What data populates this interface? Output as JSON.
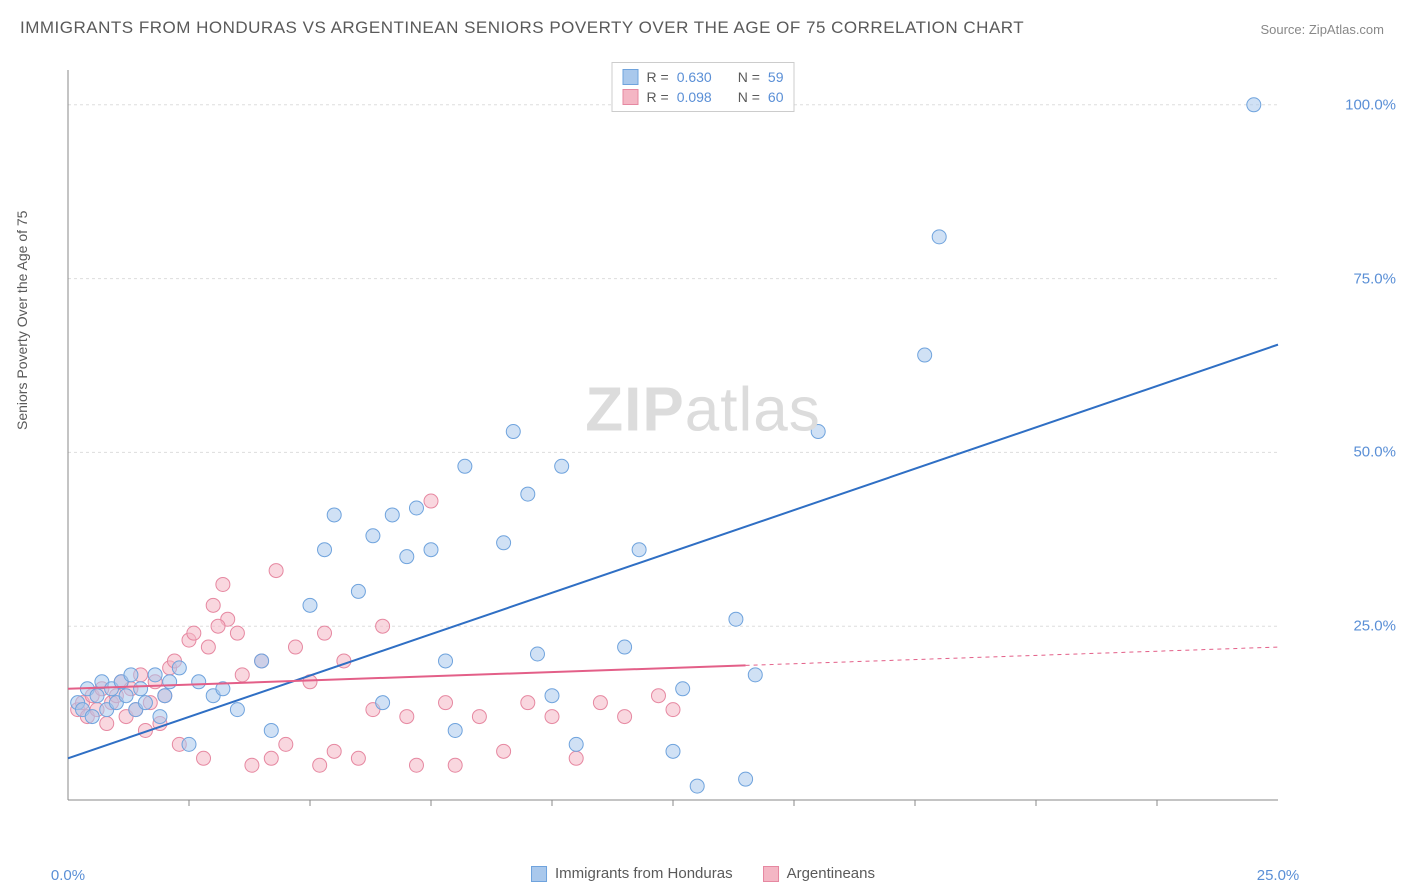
{
  "title": "IMMIGRANTS FROM HONDURAS VS ARGENTINEAN SENIORS POVERTY OVER THE AGE OF 75 CORRELATION CHART",
  "source_label": "Source: ",
  "source_value": "ZipAtlas.com",
  "y_axis_label": "Seniors Poverty Over the Age of 75",
  "watermark_zip": "ZIP",
  "watermark_atlas": "atlas",
  "chart": {
    "type": "scatter",
    "xlim": [
      0,
      25
    ],
    "ylim": [
      0,
      105
    ],
    "x_ticks": [
      0,
      25
    ],
    "x_tick_labels": [
      "0.0%",
      "25.0%"
    ],
    "x_minor_ticks": [
      2.5,
      5,
      7.5,
      10,
      12.5,
      15,
      17.5,
      20,
      22.5
    ],
    "y_ticks": [
      25,
      50,
      75,
      100
    ],
    "y_tick_labels": [
      "25.0%",
      "50.0%",
      "75.0%",
      "100.0%"
    ],
    "grid_color": "#dddddd",
    "axis_color": "#888888",
    "background_color": "#ffffff",
    "marker_radius": 7,
    "marker_stroke_width": 1,
    "line_width": 2,
    "series": [
      {
        "name": "Immigrants from Honduras",
        "fill_color": "#a9c8ec",
        "stroke_color": "#6fa3dd",
        "fill_opacity": 0.55,
        "r_label": "R = ",
        "r_value": "0.630",
        "n_label": "N = ",
        "n_value": "59",
        "trend_line": {
          "x1": 0,
          "y1": 6,
          "x2": 25,
          "y2": 65.5
        },
        "trend_solid_until_x": 25,
        "trend_color": "#2f6fc4",
        "points": [
          [
            0.2,
            14
          ],
          [
            0.3,
            13
          ],
          [
            0.4,
            16
          ],
          [
            0.5,
            12
          ],
          [
            0.6,
            15
          ],
          [
            0.7,
            17
          ],
          [
            0.8,
            13
          ],
          [
            0.9,
            16
          ],
          [
            1.0,
            14
          ],
          [
            1.1,
            17
          ],
          [
            1.2,
            15
          ],
          [
            1.3,
            18
          ],
          [
            1.4,
            13
          ],
          [
            1.5,
            16
          ],
          [
            1.6,
            14
          ],
          [
            1.8,
            18
          ],
          [
            1.9,
            12
          ],
          [
            2.0,
            15
          ],
          [
            2.1,
            17
          ],
          [
            2.3,
            19
          ],
          [
            2.5,
            8
          ],
          [
            2.7,
            17
          ],
          [
            3.0,
            15
          ],
          [
            3.2,
            16
          ],
          [
            3.5,
            13
          ],
          [
            4.0,
            20
          ],
          [
            4.2,
            10
          ],
          [
            5.0,
            28
          ],
          [
            5.3,
            36
          ],
          [
            5.5,
            41
          ],
          [
            6.0,
            30
          ],
          [
            6.3,
            38
          ],
          [
            6.7,
            41
          ],
          [
            6.5,
            14
          ],
          [
            7.0,
            35
          ],
          [
            7.2,
            42
          ],
          [
            7.5,
            36
          ],
          [
            7.8,
            20
          ],
          [
            8.0,
            10
          ],
          [
            8.2,
            48
          ],
          [
            9.0,
            37
          ],
          [
            9.5,
            44
          ],
          [
            9.2,
            53
          ],
          [
            9.7,
            21
          ],
          [
            10.0,
            15
          ],
          [
            10.2,
            48
          ],
          [
            10.5,
            8
          ],
          [
            11.5,
            22
          ],
          [
            11.8,
            36
          ],
          [
            12.5,
            7
          ],
          [
            12.7,
            16
          ],
          [
            13.0,
            2
          ],
          [
            13.8,
            26
          ],
          [
            14.0,
            3
          ],
          [
            14.2,
            18
          ],
          [
            15.5,
            53
          ],
          [
            17.7,
            64
          ],
          [
            18.0,
            81
          ],
          [
            24.5,
            100
          ]
        ]
      },
      {
        "name": "Argentineans",
        "fill_color": "#f4b6c4",
        "stroke_color": "#e688a1",
        "fill_opacity": 0.55,
        "r_label": "R = ",
        "r_value": "0.098",
        "n_label": "N = ",
        "n_value": "60",
        "trend_line": {
          "x1": 0,
          "y1": 16,
          "x2": 25,
          "y2": 22
        },
        "trend_solid_until_x": 14,
        "trend_color": "#e35f88",
        "points": [
          [
            0.2,
            13
          ],
          [
            0.3,
            14
          ],
          [
            0.4,
            12
          ],
          [
            0.5,
            15
          ],
          [
            0.6,
            13
          ],
          [
            0.7,
            16
          ],
          [
            0.8,
            11
          ],
          [
            0.9,
            14
          ],
          [
            1.0,
            15
          ],
          [
            1.1,
            17
          ],
          [
            1.2,
            12
          ],
          [
            1.3,
            16
          ],
          [
            1.4,
            13
          ],
          [
            1.5,
            18
          ],
          [
            1.6,
            10
          ],
          [
            1.7,
            14
          ],
          [
            1.8,
            17
          ],
          [
            1.9,
            11
          ],
          [
            2.0,
            15
          ],
          [
            2.1,
            19
          ],
          [
            2.2,
            20
          ],
          [
            2.3,
            8
          ],
          [
            2.5,
            23
          ],
          [
            2.6,
            24
          ],
          [
            2.8,
            6
          ],
          [
            3.0,
            28
          ],
          [
            2.9,
            22
          ],
          [
            3.2,
            31
          ],
          [
            3.3,
            26
          ],
          [
            3.1,
            25
          ],
          [
            3.5,
            24
          ],
          [
            3.6,
            18
          ],
          [
            3.8,
            5
          ],
          [
            4.0,
            20
          ],
          [
            4.2,
            6
          ],
          [
            4.3,
            33
          ],
          [
            4.5,
            8
          ],
          [
            4.7,
            22
          ],
          [
            5.0,
            17
          ],
          [
            5.2,
            5
          ],
          [
            5.3,
            24
          ],
          [
            5.5,
            7
          ],
          [
            5.7,
            20
          ],
          [
            6.0,
            6
          ],
          [
            6.3,
            13
          ],
          [
            6.5,
            25
          ],
          [
            7.0,
            12
          ],
          [
            7.2,
            5
          ],
          [
            7.5,
            43
          ],
          [
            7.8,
            14
          ],
          [
            8.0,
            5
          ],
          [
            8.5,
            12
          ],
          [
            9.0,
            7
          ],
          [
            9.5,
            14
          ],
          [
            10.0,
            12
          ],
          [
            10.5,
            6
          ],
          [
            11.0,
            14
          ],
          [
            11.5,
            12
          ],
          [
            12.2,
            15
          ],
          [
            12.5,
            13
          ]
        ]
      }
    ]
  }
}
